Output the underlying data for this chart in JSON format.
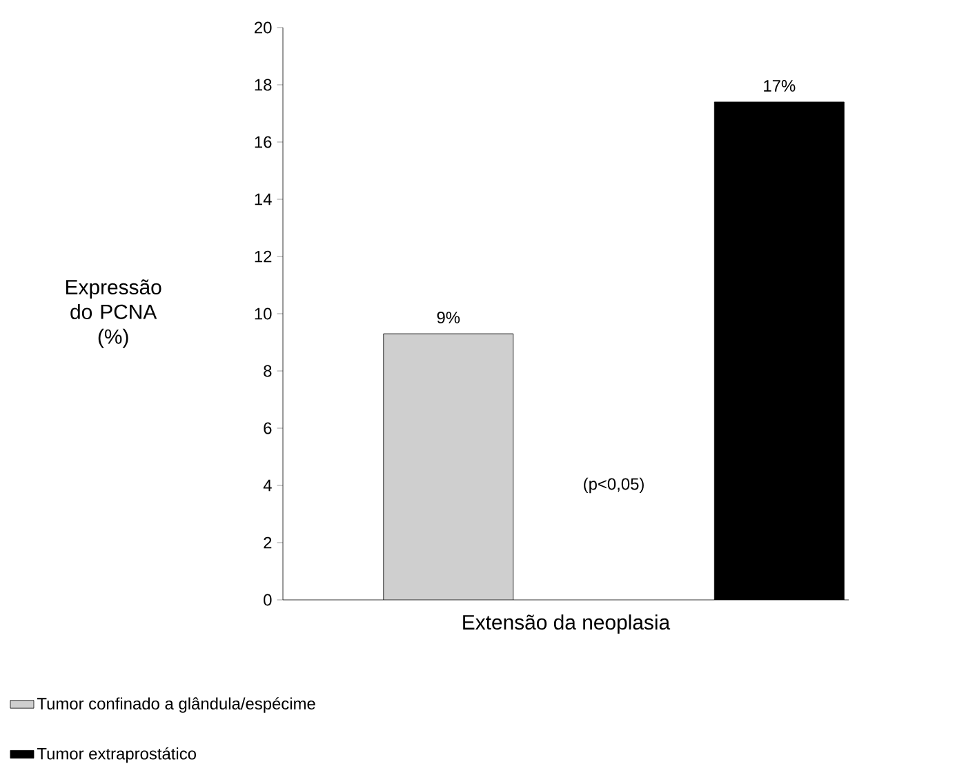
{
  "chart_data": {
    "type": "bar",
    "ylabel": "Expressão do PCNA (%)",
    "xlabel": "Extensão da neoplasia",
    "categories": [
      null,
      null
    ],
    "series": [
      {
        "name": "Tumor confinado a glândula/espécime",
        "color": "#cfcfcf",
        "values": [
          9.3,
          null
        ],
        "value_labels": [
          "9%",
          null
        ]
      },
      {
        "name": "Tumor extraprostático",
        "color": "#000000",
        "values": [
          null,
          17.4
        ],
        "value_labels": [
          null,
          "17%"
        ]
      }
    ],
    "ylim": [
      0,
      20
    ],
    "yticks": [
      0,
      2,
      4,
      6,
      8,
      10,
      12,
      14,
      16,
      18,
      20
    ],
    "annotations": [
      "(p<0,05)"
    ],
    "legend": "bottom left",
    "grid": false
  }
}
